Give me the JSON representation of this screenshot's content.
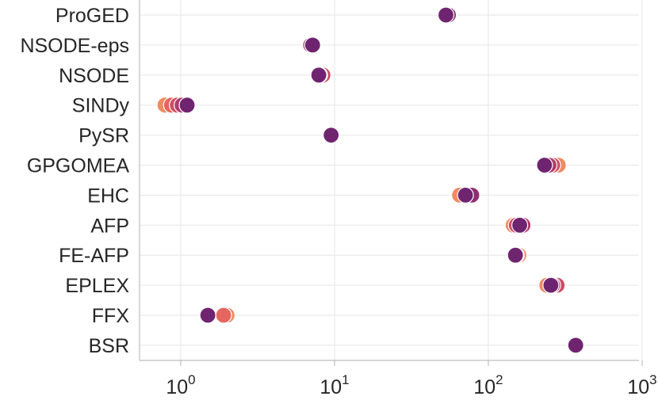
{
  "chart_data": {
    "type": "scatter",
    "x_scale": "log",
    "xlim": [
      0.3,
      1000
    ],
    "grid": true,
    "categories": [
      "ProGED",
      "NSODE-eps",
      "NSODE",
      "SINDy",
      "PySR",
      "GPGOMEA",
      "EHC",
      "AFP",
      "FE-AFP",
      "EPLEX",
      "FFX",
      "BSR"
    ],
    "x_ticks": [
      {
        "value": 1,
        "base": "10",
        "exp": "0"
      },
      {
        "value": 10,
        "base": "10",
        "exp": "1"
      },
      {
        "value": 100,
        "base": "10",
        "exp": "2"
      },
      {
        "value": 1000,
        "base": "10",
        "exp": "3"
      }
    ],
    "palette": [
      "#ef8a62",
      "#e4665f",
      "#cf4c63",
      "#b03b6a",
      "#8e2d6f",
      "#6f2470"
    ],
    "points": [
      {
        "category": "ProGED",
        "x": 55,
        "color": "#8e2d6f"
      },
      {
        "category": "ProGED",
        "x": 53,
        "color": "#6f2470"
      },
      {
        "category": "NSODE-eps",
        "x": 7.0,
        "color": "#8e2d6f"
      },
      {
        "category": "NSODE-eps",
        "x": 7.2,
        "color": "#6f2470"
      },
      {
        "category": "NSODE",
        "x": 8.4,
        "color": "#cf4c63"
      },
      {
        "category": "NSODE",
        "x": 8.0,
        "color": "#8e2d6f"
      },
      {
        "category": "NSODE",
        "x": 7.9,
        "color": "#6f2470"
      },
      {
        "category": "SINDy",
        "x": 0.79,
        "color": "#ef8a62"
      },
      {
        "category": "SINDy",
        "x": 0.87,
        "color": "#e4665f"
      },
      {
        "category": "SINDy",
        "x": 0.95,
        "color": "#cf4c63"
      },
      {
        "category": "SINDy",
        "x": 1.02,
        "color": "#b03b6a"
      },
      {
        "category": "SINDy",
        "x": 1.1,
        "color": "#6f2470"
      },
      {
        "category": "PySR",
        "x": 9.6,
        "color": "#8e2d6f"
      },
      {
        "category": "PySR",
        "x": 9.5,
        "color": "#6f2470"
      },
      {
        "category": "GPGOMEA",
        "x": 285,
        "color": "#ef8a62"
      },
      {
        "category": "GPGOMEA",
        "x": 262,
        "color": "#cf4c63"
      },
      {
        "category": "GPGOMEA",
        "x": 248,
        "color": "#b03b6a"
      },
      {
        "category": "GPGOMEA",
        "x": 232,
        "color": "#6f2470"
      },
      {
        "category": "EHC",
        "x": 65,
        "color": "#ef8a62"
      },
      {
        "category": "EHC",
        "x": 78,
        "color": "#8e2d6f"
      },
      {
        "category": "EHC",
        "x": 71,
        "color": "#6f2470"
      },
      {
        "category": "AFP",
        "x": 145,
        "color": "#ef8a62"
      },
      {
        "category": "AFP",
        "x": 152,
        "color": "#cf4c63"
      },
      {
        "category": "AFP",
        "x": 168,
        "color": "#b03b6a"
      },
      {
        "category": "AFP",
        "x": 160,
        "color": "#6f2470"
      },
      {
        "category": "FE-AFP",
        "x": 158,
        "color": "#ef8a62"
      },
      {
        "category": "FE-AFP",
        "x": 152,
        "color": "#b03b6a"
      },
      {
        "category": "FE-AFP",
        "x": 150,
        "color": "#6f2470"
      },
      {
        "category": "EPLEX",
        "x": 240,
        "color": "#ef8a62"
      },
      {
        "category": "EPLEX",
        "x": 280,
        "color": "#cf4c63"
      },
      {
        "category": "EPLEX",
        "x": 262,
        "color": "#b03b6a"
      },
      {
        "category": "EPLEX",
        "x": 255,
        "color": "#6f2470"
      },
      {
        "category": "FFX",
        "x": 2.0,
        "color": "#ef8a62"
      },
      {
        "category": "FFX",
        "x": 1.9,
        "color": "#e4665f"
      },
      {
        "category": "FFX",
        "x": 1.5,
        "color": "#6f2470"
      },
      {
        "category": "BSR",
        "x": 370,
        "color": "#6f2470"
      }
    ]
  }
}
